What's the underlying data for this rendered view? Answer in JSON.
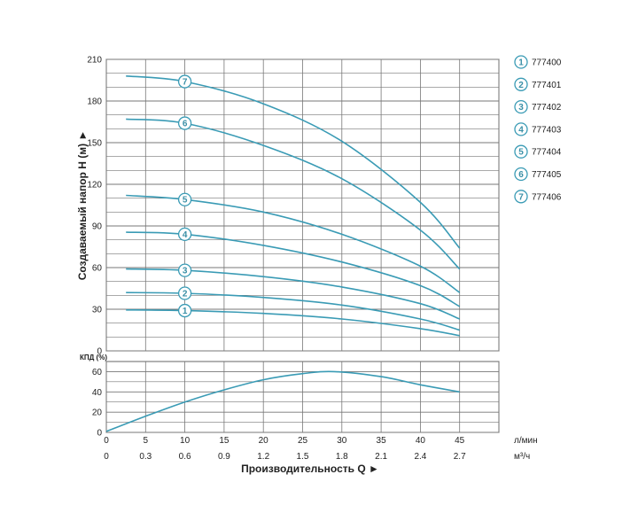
{
  "chart_data": [
    {
      "type": "line",
      "ylabel": "Создаваемый напор H (м) ►",
      "ylim": [
        0,
        210
      ],
      "yticks": [
        0,
        30,
        60,
        90,
        120,
        150,
        180,
        210
      ],
      "xlim": [
        0,
        50
      ],
      "grid": true,
      "legend_position": "right",
      "line_color": "#3a9bb5",
      "series": [
        {
          "name": "777400",
          "marker": "1",
          "x": [
            2.5,
            10,
            20,
            30,
            40,
            45
          ],
          "values": [
            29.5,
            29,
            27,
            23,
            16,
            11
          ]
        },
        {
          "name": "777401",
          "marker": "2",
          "x": [
            2.5,
            10,
            20,
            30,
            40,
            45
          ],
          "values": [
            42,
            41.5,
            38.5,
            33,
            23,
            15
          ]
        },
        {
          "name": "777402",
          "marker": "3",
          "x": [
            2.5,
            10,
            20,
            30,
            40,
            45
          ],
          "values": [
            59,
            58,
            53.5,
            46,
            34,
            23
          ]
        },
        {
          "name": "777403",
          "marker": "4",
          "x": [
            2.5,
            10,
            20,
            30,
            40,
            45
          ],
          "values": [
            85.5,
            84,
            76,
            64,
            47,
            32
          ]
        },
        {
          "name": "777404",
          "marker": "5",
          "x": [
            2.5,
            10,
            20,
            30,
            40,
            45
          ],
          "values": [
            112,
            109,
            100,
            84,
            61,
            42
          ]
        },
        {
          "name": "777405",
          "marker": "6",
          "x": [
            2.5,
            10,
            20,
            30,
            40,
            45
          ],
          "values": [
            167,
            164,
            148,
            124,
            87,
            59
          ]
        },
        {
          "name": "777406",
          "marker": "7",
          "x": [
            2.5,
            10,
            20,
            30,
            40,
            45
          ],
          "values": [
            198,
            194,
            178,
            151,
            107,
            74
          ]
        }
      ]
    },
    {
      "type": "line",
      "ylabel": "КПД (%)",
      "ylim": [
        0,
        70
      ],
      "yticks": [
        0,
        20,
        40,
        60
      ],
      "xlim": [
        0,
        50
      ],
      "grid": true,
      "xlabel": "Производительность Q ►",
      "x_unit_lmin": "л/мин",
      "x_unit_m3h": "м³/ч",
      "xticks_lmin": [
        "0",
        "5",
        "10",
        "15",
        "20",
        "25",
        "30",
        "35",
        "40",
        "45"
      ],
      "xticks_m3h": [
        "0",
        "0.3",
        "0.6",
        "0.9",
        "1.2",
        "1.5",
        "1.8",
        "2.1",
        "2.4",
        "2.7"
      ],
      "series": [
        {
          "x": [
            0,
            5,
            10,
            15,
            20,
            25,
            29,
            35,
            40,
            45
          ],
          "values": [
            1,
            16,
            30,
            42,
            52,
            58,
            60,
            55,
            47,
            40
          ]
        }
      ]
    }
  ]
}
